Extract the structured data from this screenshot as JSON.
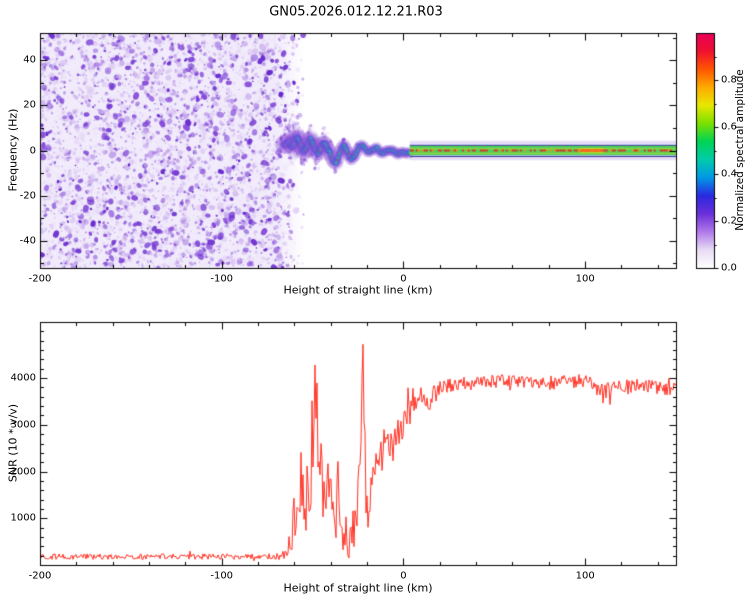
{
  "title": "GN05.2026.012.12.21.R03",
  "chart_data": [
    {
      "type": "heatmap",
      "name": "spectrogram",
      "xlabel": "Height of straight line (km)",
      "ylabel": "Frequency (Hz)",
      "xlim": [
        -200,
        150
      ],
      "ylim": [
        -52,
        52
      ],
      "xticks": [
        -200,
        -100,
        0,
        100
      ],
      "yticks": [
        -40,
        -20,
        0,
        20,
        40
      ],
      "colorbar": {
        "label": "Normalized spectral amplitude",
        "ticks": [
          0.0,
          0.2,
          0.4,
          0.6,
          0.8
        ],
        "range": [
          0.0,
          1.0
        ],
        "colors_low_to_high": [
          "#ffffff",
          "#e8dcf5",
          "#b07ae8",
          "#6b2fd9",
          "#2a2ae0",
          "#0099e6",
          "#00ccaa",
          "#00d455",
          "#7ce000",
          "#e8e800",
          "#ffaa00",
          "#ff5500",
          "#f01030",
          "#e8005a"
        ]
      },
      "regions": [
        {
          "name": "broadband-noise",
          "x_range": [
            -200,
            -62
          ],
          "amplitude_range": [
            0.0,
            0.45
          ]
        },
        {
          "name": "carrier-acquisition",
          "x_range": [
            -62,
            4
          ],
          "amplitude_range": [
            0.2,
            1.0
          ]
        },
        {
          "name": "locked-carrier-line",
          "x_range": [
            4,
            150
          ],
          "freq_hz": 0,
          "amplitude_range": [
            0.4,
            1.0
          ]
        }
      ],
      "carrier_trace": {
        "x": [
          -66,
          -63,
          -61,
          -59,
          -57,
          -55,
          -53,
          -51,
          -49,
          -47,
          -45,
          -43,
          -41,
          -39,
          -37,
          -35,
          -33,
          -31,
          -29,
          -27,
          -25,
          -23,
          -21,
          -19,
          -17,
          -15,
          -13,
          -11,
          -9,
          -7,
          -5,
          -3,
          -1,
          2,
          6,
          150
        ],
        "freq_hz": [
          3,
          5,
          2,
          6,
          3,
          -1,
          2,
          5,
          1,
          -2,
          2,
          4,
          0,
          -3,
          -6,
          -2,
          2,
          0,
          -3,
          -1,
          1,
          3,
          1,
          -1,
          0,
          1,
          -1,
          0,
          1,
          0,
          0.5,
          -0.5,
          0,
          0,
          0,
          0
        ]
      }
    },
    {
      "type": "line",
      "name": "snr",
      "xlabel": "Height of straight line (km)",
      "ylabel": "SNR (10 * v/v)",
      "xlim": [
        -200,
        150
      ],
      "ylim": [
        0,
        5200
      ],
      "xticks": [
        -200,
        -100,
        0,
        100
      ],
      "yticks": [
        1000,
        2000,
        3000,
        4000
      ],
      "line_color": "#ff3326",
      "profile": {
        "x": [
          -200,
          -70,
          -64,
          -60,
          -57,
          -54,
          -51,
          -48,
          -46,
          -44,
          -42,
          -40,
          -38,
          -36,
          -34,
          -32,
          -30,
          -28,
          -26,
          -24,
          -23,
          -22.5,
          -22,
          -21,
          -20,
          -18,
          -16,
          -14,
          -12,
          -10,
          -8,
          -6,
          -4,
          -2,
          0,
          3,
          6,
          10,
          14,
          18,
          22,
          30,
          40,
          60,
          80,
          100,
          107,
          110,
          112,
          114,
          116,
          120,
          130,
          140,
          150
        ],
        "base": [
          180,
          180,
          240,
          900,
          1800,
          1300,
          2200,
          3300,
          2200,
          1100,
          1600,
          1300,
          900,
          1300,
          700,
          500,
          450,
          700,
          1100,
          2600,
          3800,
          4700,
          3800,
          2000,
          900,
          1800,
          2300,
          2500,
          2300,
          2600,
          2700,
          2500,
          2800,
          2900,
          3000,
          3200,
          3400,
          3600,
          3500,
          3700,
          3800,
          3850,
          3900,
          3950,
          3900,
          3950,
          3800,
          3550,
          3850,
          3600,
          3850,
          3800,
          3850,
          3800,
          3750
        ],
        "rough": [
          60,
          60,
          140,
          600,
          900,
          800,
          1000,
          900,
          900,
          700,
          700,
          700,
          600,
          700,
          450,
          350,
          300,
          400,
          600,
          900,
          800,
          400,
          800,
          900,
          600,
          500,
          450,
          400,
          400,
          350,
          350,
          350,
          300,
          300,
          280,
          260,
          250,
          220,
          220,
          200,
          180,
          160,
          150,
          140,
          150,
          140,
          180,
          250,
          180,
          220,
          160,
          150,
          150,
          150,
          150
        ]
      }
    }
  ]
}
